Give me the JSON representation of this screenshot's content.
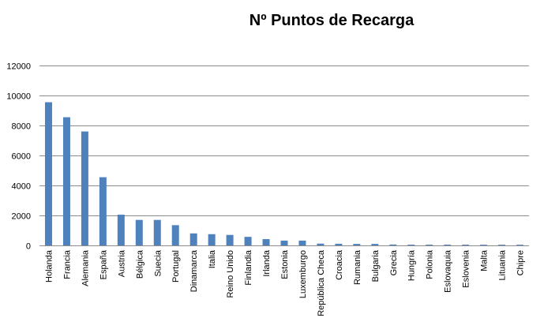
{
  "chart_data": {
    "type": "bar",
    "title": "Nº Puntos de Recarga",
    "xlabel": "",
    "ylabel": "",
    "ylim": [
      0,
      12000
    ],
    "yticks": [
      0,
      2000,
      4000,
      6000,
      8000,
      10000,
      12000
    ],
    "grid": true,
    "legend": "none",
    "bar_color": "#4f81bd",
    "categories": [
      "Holanda",
      "Francia",
      "Alemania",
      "España",
      "Austria",
      "Bélgica",
      "Suecia",
      "Portugal",
      "Dinamarca",
      "Italia",
      "Reino Unido",
      "Finlandia",
      "Irlanda",
      "Estonia",
      "Luxemburgo",
      "República Checa",
      "Croacia",
      "Rumania",
      "Bulgaria",
      "Grecia",
      "Hungría",
      "Polonia",
      "Eslovaquia",
      "Eslovenia",
      "Malta",
      "Lituania",
      "Chipre"
    ],
    "values": [
      9550,
      8550,
      7600,
      4550,
      2050,
      1700,
      1700,
      1350,
      800,
      750,
      700,
      570,
      420,
      320,
      320,
      120,
      110,
      100,
      100,
      60,
      50,
      50,
      50,
      50,
      45,
      45,
      45
    ]
  }
}
